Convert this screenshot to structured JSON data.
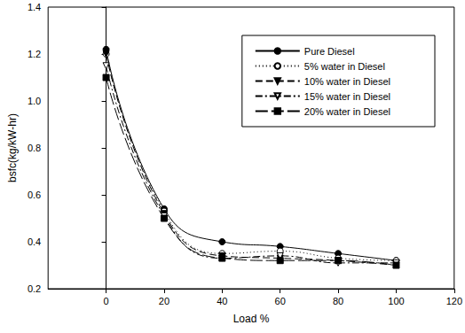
{
  "chart_data": {
    "type": "line",
    "x_label": "Load %",
    "y_label": "bsfc(kg/kW-hr)",
    "x": [
      0,
      20,
      40,
      60,
      80,
      100
    ],
    "series": [
      {
        "name": "Pure Diesel",
        "color": "#000000",
        "marker": "circle",
        "line_style": "solid",
        "values": [
          1.22,
          0.54,
          0.4,
          0.38,
          0.35,
          0.32
        ]
      },
      {
        "name": "5% water in Diesel",
        "color": "#000000",
        "marker": "circle_open",
        "line_style": "dotted",
        "values": [
          1.2,
          0.53,
          0.35,
          0.36,
          0.33,
          0.32
        ]
      },
      {
        "name": "10% water in Diesel",
        "color": "#000000",
        "marker": "triangle_down",
        "line_style": "dashed",
        "values": [
          1.2,
          0.52,
          0.34,
          0.33,
          0.32,
          0.3
        ]
      },
      {
        "name": "15% water in Diesel",
        "color": "#000000",
        "marker": "triangle_down_open",
        "line_style": "dashdot",
        "values": [
          1.15,
          0.51,
          0.33,
          0.34,
          0.31,
          0.31
        ]
      },
      {
        "name": "20% water in Diesel",
        "color": "#000000",
        "marker": "square",
        "line_style": "longdash",
        "values": [
          1.1,
          0.5,
          0.33,
          0.32,
          0.32,
          0.3
        ]
      }
    ],
    "xlim": [
      -20,
      120
    ],
    "xticks": [
      0,
      20,
      40,
      60,
      80,
      100,
      120
    ],
    "ylim": [
      0.2,
      1.4
    ],
    "yticks": [
      0.2,
      0.4,
      0.6,
      0.8,
      {
        "value": 1,
        "label": "1.0"
      },
      1.2,
      1.4
    ],
    "grid": false,
    "legend": "upper right"
  }
}
